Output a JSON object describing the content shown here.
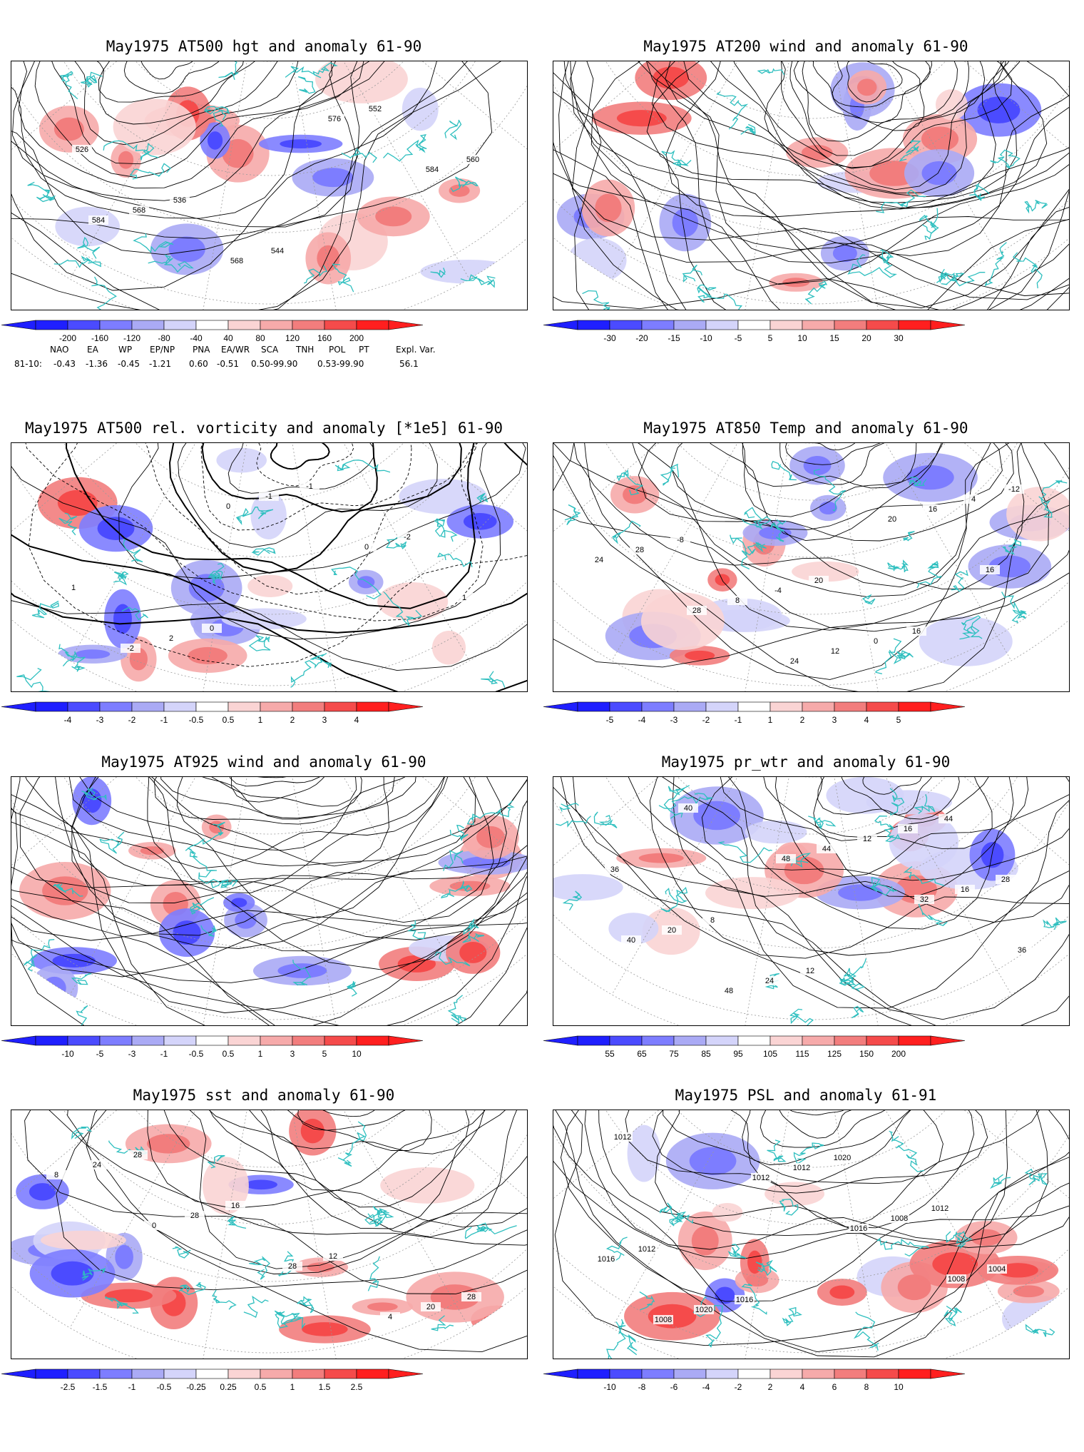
{
  "colors": {
    "coast": "#2ebfbf",
    "contour": "#000000",
    "grid": "#9a9a9a",
    "blue_scale": [
      "#1f1fff",
      "#4b4bff",
      "#7d7dff",
      "#aaaaf5",
      "#d4d4fa"
    ],
    "red_scale": [
      "#fad4d4",
      "#f6aaaa",
      "#f27d7d",
      "#f54b4b",
      "#ff1f1f"
    ]
  },
  "panels": [
    {
      "id": "p1",
      "title": "May1975 AT500 hgt and anomaly 61-90",
      "colorbar_labels": [
        "-200",
        "-160",
        "-120",
        "-80",
        "-40",
        "40",
        "80",
        "120",
        "160",
        "200"
      ],
      "contour_labels": [
        "526",
        "536",
        "544",
        "552",
        "560",
        "568",
        "568",
        "576",
        "584",
        "584"
      ],
      "field": "hgt"
    },
    {
      "id": "p2",
      "title": "May1975 AT200 wind and anomaly 61-90",
      "colorbar_labels": [
        "-30",
        "-20",
        "-15",
        "-10",
        "-5",
        "5",
        "10",
        "15",
        "20",
        "30"
      ],
      "contour_labels": [],
      "field": "wind"
    },
    {
      "id": "p3",
      "title": "May1975 AT500 rel. vorticity and anomaly [*1e5] 61-90",
      "colorbar_labels": [
        "-4",
        "-3",
        "-2",
        "-1",
        "-0.5",
        "0.5",
        "1",
        "2",
        "3",
        "4"
      ],
      "contour_labels": [
        "0",
        "-1",
        "-2",
        "1",
        "2",
        "-1",
        "0",
        "1",
        "-2",
        "0"
      ],
      "field": "vort"
    },
    {
      "id": "p4",
      "title": "May1975 AT850 Temp and anomaly 61-90",
      "colorbar_labels": [
        "-5",
        "-4",
        "-3",
        "-2",
        "-1",
        "1",
        "2",
        "3",
        "4",
        "5"
      ],
      "contour_labels": [
        "20",
        "16",
        "-12",
        "-8",
        "-4",
        "0",
        "4",
        "28",
        "8",
        "12",
        "16",
        "24",
        "28",
        "24",
        "20",
        "16"
      ],
      "field": "temp"
    },
    {
      "id": "p5",
      "title": "May1975 AT925 wind and anomaly 61-90",
      "colorbar_labels": [
        "-10",
        "-5",
        "-3",
        "-1",
        "-0.5",
        "0.5",
        "1",
        "3",
        "5",
        "10"
      ],
      "contour_labels": [],
      "field": "wind"
    },
    {
      "id": "p6",
      "title": "May1975 pr_wtr and anomaly 61-90",
      "colorbar_labels": [
        "55",
        "65",
        "75",
        "85",
        "95",
        "105",
        "115",
        "125",
        "150",
        "200"
      ],
      "contour_labels": [
        "44",
        "36",
        "8",
        "12",
        "16",
        "28",
        "20",
        "24",
        "12",
        "16",
        "40",
        "48",
        "44",
        "32",
        "36",
        "40",
        "48"
      ],
      "field": "prw"
    },
    {
      "id": "p7",
      "title": "May1975 sst and anomaly 61-90",
      "colorbar_labels": [
        "-2.5",
        "-1.5",
        "-1",
        "-0.5",
        "-0.25",
        "0.25",
        "0.5",
        "1",
        "1.5",
        "2.5"
      ],
      "contour_labels": [
        "28",
        "28",
        "16",
        "12",
        "20",
        "24",
        "28",
        "28",
        "4",
        "8",
        "0"
      ],
      "field": "sst"
    },
    {
      "id": "p8",
      "title": "May1975 PSL and anomaly 61-91",
      "colorbar_labels": [
        "-10",
        "-8",
        "-6",
        "-4",
        "-2",
        "2",
        "4",
        "6",
        "8",
        "10"
      ],
      "contour_labels": [
        "1012",
        "1016",
        "1020",
        "1012",
        "1016",
        "1020",
        "1012",
        "1008",
        "1004",
        "1008",
        "1012",
        "1016",
        "1008",
        "1012"
      ],
      "field": "psl"
    }
  ],
  "teleconnection": {
    "headers": [
      "NAO",
      "EA",
      "WP",
      "EP/NP",
      "PNA",
      "EA/WR",
      "SCA",
      "TNH",
      "POL",
      "PT",
      "Expl. Var."
    ],
    "row_label": "81-10:",
    "values": [
      "-0.43",
      "-1.36",
      "-0.45",
      "-1.21",
      "0.60",
      "-0.51",
      "0.50-99.90",
      "0.53-99.90",
      "56.1"
    ]
  }
}
